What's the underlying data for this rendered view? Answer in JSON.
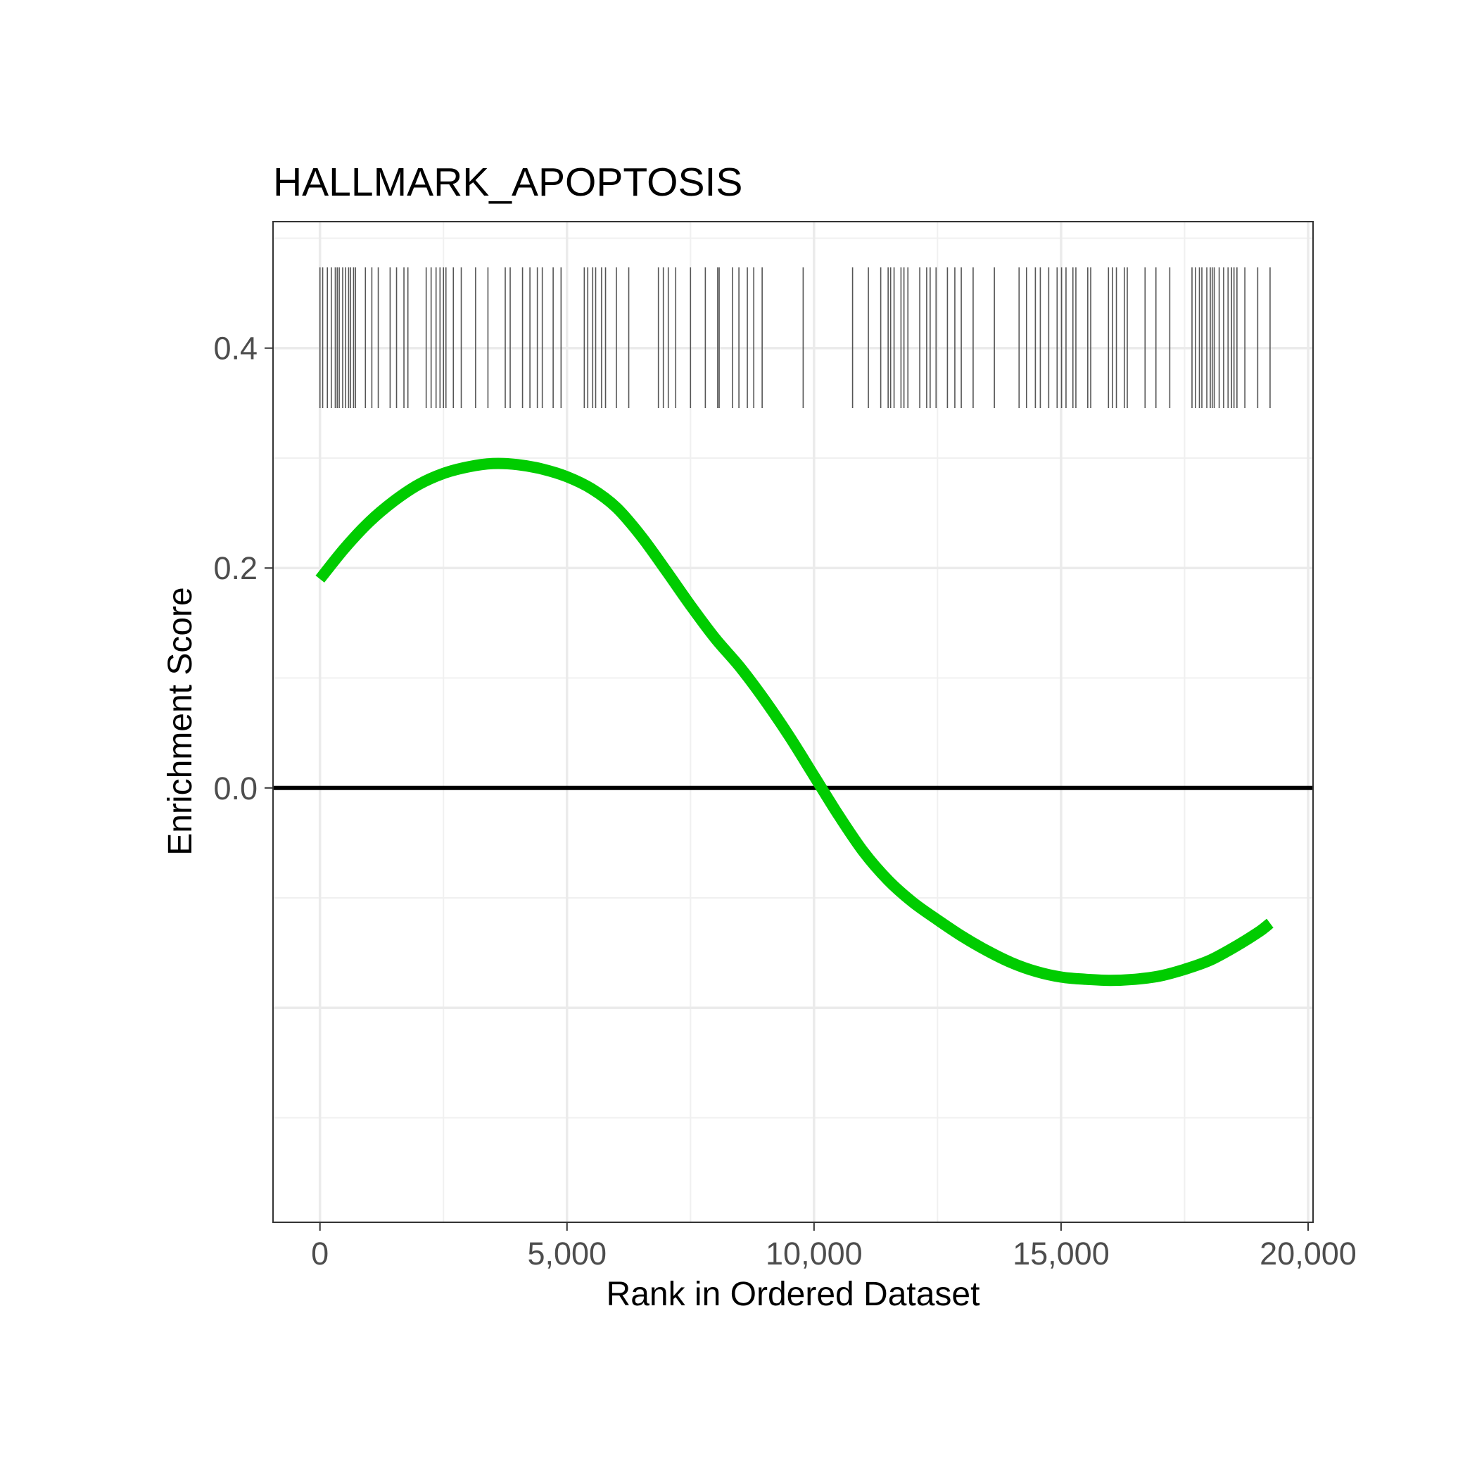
{
  "chart_data": {
    "type": "line",
    "title": "HALLMARK_APOPTOSIS",
    "xlabel": "Rank in Ordered Dataset",
    "ylabel": "Enrichment Score",
    "xlim": [
      -950,
      20100
    ],
    "ylim": [
      -0.395,
      0.515
    ],
    "x_ticks": [
      {
        "value": 0,
        "label": "0"
      },
      {
        "value": 5000,
        "label": "5,000"
      },
      {
        "value": 10000,
        "label": "10,000"
      },
      {
        "value": 15000,
        "label": "15,000"
      },
      {
        "value": 20000,
        "label": "20,000"
      }
    ],
    "y_ticks": [
      {
        "value": 0.0,
        "label": "0.0"
      },
      {
        "value": 0.2,
        "label": "0.2"
      },
      {
        "value": 0.4,
        "label": "0.4"
      }
    ],
    "grid": true,
    "series": [
      {
        "color": "#00cc00",
        "x": [
          0,
          500,
          1000,
          1500,
          2000,
          2500,
          3000,
          3500,
          4000,
          4500,
          5000,
          5500,
          6000,
          6500,
          7000,
          7500,
          8000,
          8500,
          9000,
          9500,
          10000,
          10500,
          11000,
          11500,
          12000,
          12500,
          13000,
          13500,
          14000,
          14500,
          15000,
          15500,
          16000,
          16500,
          17000,
          17500,
          18000,
          18500,
          19000,
          19230
        ],
        "y": [
          0.19,
          0.218,
          0.242,
          0.261,
          0.276,
          0.286,
          0.292,
          0.295,
          0.294,
          0.29,
          0.283,
          0.272,
          0.255,
          0.229,
          0.198,
          0.166,
          0.136,
          0.11,
          0.08,
          0.047,
          0.011,
          -0.025,
          -0.058,
          -0.084,
          -0.104,
          -0.12,
          -0.135,
          -0.148,
          -0.159,
          -0.167,
          -0.172,
          -0.174,
          -0.175,
          -0.174,
          -0.171,
          -0.165,
          -0.157,
          -0.145,
          -0.131,
          -0.123
        ]
      }
    ],
    "zero_line": 0,
    "gene_hit_ranks": [
      0,
      55,
      150,
      230,
      310,
      350,
      390,
      460,
      520,
      580,
      620,
      680,
      720,
      920,
      1050,
      1180,
      1420,
      1550,
      1700,
      1780,
      2150,
      2250,
      2350,
      2430,
      2500,
      2550,
      2700,
      2860,
      3150,
      3400,
      3750,
      3850,
      4100,
      4250,
      4400,
      4500,
      4720,
      4880,
      5350,
      5420,
      5520,
      5580,
      5700,
      5780,
      6000,
      6250,
      6850,
      6950,
      7050,
      7200,
      7500,
      7800,
      8050,
      8080,
      8350,
      8480,
      8650,
      8780,
      8950,
      9780,
      10780,
      11100,
      11350,
      11500,
      11550,
      11620,
      11760,
      11820,
      11900,
      12140,
      12280,
      12350,
      12470,
      12700,
      12850,
      12980,
      13220,
      13650,
      14150,
      14300,
      14480,
      14580,
      14750,
      14920,
      15010,
      15100,
      15240,
      15300,
      15540,
      15600,
      15960,
      16040,
      16120,
      16280,
      16340,
      16700,
      16920,
      17200,
      17650,
      17720,
      17800,
      17850,
      17950,
      18020,
      18060,
      18100,
      18200,
      18290,
      18380,
      18450,
      18500,
      18560,
      18720,
      18980,
      19230
    ]
  }
}
